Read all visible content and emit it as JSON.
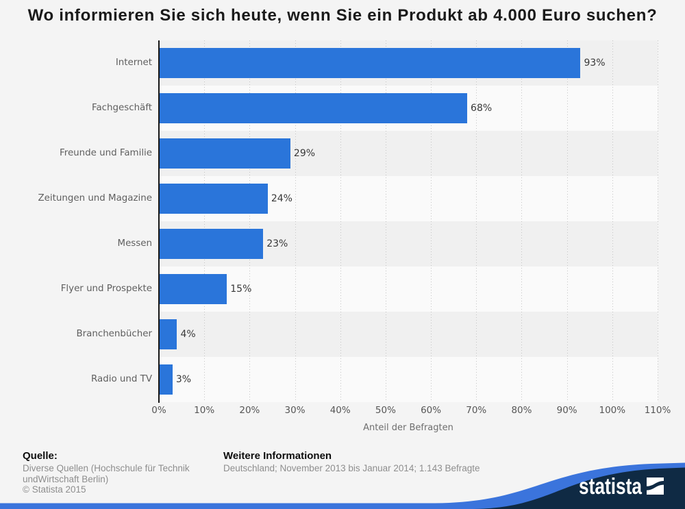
{
  "title": "Wo informieren Sie sich heute, wenn Sie ein Produkt ab 4.000 Euro suchen?",
  "chart_data": {
    "type": "bar",
    "orientation": "horizontal",
    "title": "Wo informieren Sie sich heute, wenn Sie ein Produkt ab 4.000 Euro suchen?",
    "categories": [
      "Internet",
      "Fachgeschäft",
      "Freunde und Familie",
      "Zeitungen und Magazine",
      "Messen",
      "Flyer und Prospekte",
      "Branchenbücher",
      "Radio und TV"
    ],
    "values": [
      93,
      68,
      29,
      24,
      23,
      15,
      4,
      3
    ],
    "value_labels": [
      "93%",
      "68%",
      "29%",
      "24%",
      "23%",
      "15%",
      "4%",
      "3%"
    ],
    "xlabel": "Anteil der Befragten",
    "ylabel": "",
    "xlim": [
      0,
      110
    ],
    "x_ticks": [
      "0%",
      "10%",
      "20%",
      "30%",
      "40%",
      "50%",
      "60%",
      "70%",
      "80%",
      "90%",
      "100%",
      "110%"
    ],
    "grid": "vertical-dotted",
    "legend": "none",
    "bar_color": "#2a75da",
    "row_band_colors": [
      "#f0f0f0",
      "#fafafa"
    ]
  },
  "footer": {
    "source_heading": "Quelle:",
    "source_text": "Diverse Quellen (Hochschule für Technik undWirtschaft Berlin)",
    "copyright": "© Statista 2015",
    "info_heading": "Weitere Informationen",
    "info_text": "Deutschland; November 2013 bis Januar 2014; 1.143 Befragte"
  },
  "branding": {
    "logo_text": "statista",
    "navy_color": "#0f2a44",
    "blue_color": "#3b74dc"
  }
}
